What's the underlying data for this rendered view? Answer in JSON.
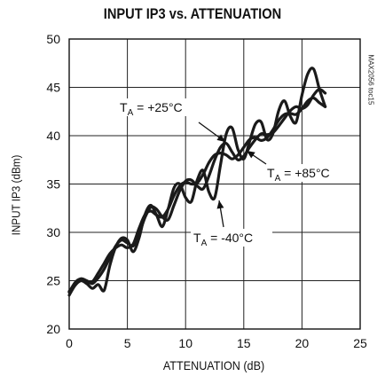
{
  "chart_data": {
    "type": "line",
    "title": "INPUT IP3 vs. ATTENUATION",
    "xlabel": "ATTENUATION (dB)",
    "ylabel": "INPUT IP3 (dBm)",
    "figure_code": "MAX2056 toc15",
    "xlim": [
      0,
      25
    ],
    "ylim": [
      20,
      50
    ],
    "xticks": [
      "0",
      "5",
      "10",
      "15",
      "20",
      "25"
    ],
    "yticks": [
      "20",
      "25",
      "30",
      "35",
      "40",
      "45",
      "50"
    ],
    "grid": true,
    "legend": "none",
    "annotations": [
      {
        "main": "T",
        "sub": "A",
        "rest": " = +25°C",
        "series": 0
      },
      {
        "main": "T",
        "sub": "A",
        "rest": " = +85°C",
        "series": 1
      },
      {
        "main": "T",
        "sub": "A",
        "rest": " = -40°C",
        "series": 2
      }
    ],
    "series": [
      {
        "x": [
          0,
          0.5,
          1,
          1.5,
          2,
          2.5,
          3,
          3.5,
          4,
          4.5,
          5,
          5.5,
          6,
          6.5,
          7,
          7.5,
          8,
          8.5,
          9,
          9.5,
          10,
          10.5,
          11,
          11.5,
          12,
          12.5,
          13,
          13.5,
          14,
          14.5,
          15,
          15.5,
          16,
          16.5,
          17,
          17.5,
          18,
          18.5,
          19,
          19.5,
          20,
          20.5,
          21,
          21.5,
          22
        ],
        "y": [
          23.8,
          24.8,
          25.2,
          25.0,
          24.7,
          25.3,
          26.2,
          27.4,
          28.6,
          29.2,
          28.9,
          28.6,
          29.8,
          31.5,
          32.6,
          32.4,
          31.6,
          31.3,
          32.8,
          34.3,
          35.3,
          35.4,
          34.8,
          34.5,
          35.8,
          37.5,
          38.8,
          39.2,
          38.3,
          37.5,
          37.9,
          38.8,
          39.6,
          40.2,
          40.1,
          40.3,
          41.0,
          41.8,
          42.6,
          43.0,
          42.8,
          43.2,
          44.2,
          44.8,
          44.4
        ]
      },
      {
        "x": [
          0,
          0.5,
          1,
          1.5,
          2,
          2.5,
          3,
          3.5,
          4,
          4.5,
          5,
          5.5,
          6,
          6.5,
          7,
          7.5,
          8,
          8.5,
          9,
          9.5,
          10,
          10.5,
          11,
          11.5,
          12,
          12.5,
          13,
          13.5,
          14,
          14.5,
          15,
          15.5,
          16,
          16.5,
          17,
          17.5,
          18,
          18.5,
          19,
          19.5,
          20,
          20.5,
          21,
          21.5,
          22
        ],
        "y": [
          23.9,
          24.6,
          25.0,
          24.8,
          24.9,
          25.8,
          26.8,
          27.8,
          28.4,
          28.7,
          28.4,
          28.8,
          30.4,
          31.8,
          32.2,
          31.8,
          31.6,
          32.4,
          33.8,
          34.8,
          35.2,
          35.0,
          35.1,
          36.0,
          37.2,
          38.0,
          38.2,
          38.0,
          37.6,
          38.0,
          38.8,
          39.6,
          39.8,
          39.5,
          39.8,
          40.6,
          41.6,
          42.2,
          42.3,
          42.2,
          42.8,
          43.6,
          43.9,
          43.4,
          43.0
        ]
      },
      {
        "x": [
          0,
          0.5,
          1,
          1.5,
          2,
          2.5,
          3,
          3.5,
          4,
          4.5,
          5,
          5.5,
          6,
          6.5,
          7,
          7.5,
          8,
          8.5,
          9,
          9.5,
          10,
          10.5,
          11,
          11.5,
          12,
          12.5,
          13,
          13.5,
          14,
          14.5,
          15,
          15.5,
          16,
          16.5,
          17,
          17.5,
          18,
          18.5,
          19,
          19.5,
          20,
          20.5,
          21,
          21.5,
          22
        ],
        "y": [
          23.5,
          24.5,
          25.0,
          24.7,
          24.2,
          24.6,
          24.0,
          26.6,
          28.5,
          29.4,
          29.2,
          28.0,
          29.4,
          31.8,
          32.8,
          31.8,
          30.6,
          32.4,
          34.6,
          35.0,
          33.6,
          33.2,
          35.4,
          36.4,
          34.2,
          33.6,
          37.0,
          40.2,
          40.8,
          38.6,
          37.6,
          39.4,
          41.2,
          41.4,
          39.6,
          40.2,
          42.6,
          43.6,
          42.0,
          41.4,
          44.2,
          46.4,
          46.9,
          44.8,
          43.0
        ]
      }
    ]
  }
}
